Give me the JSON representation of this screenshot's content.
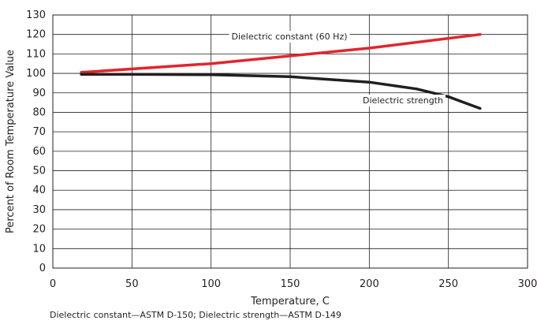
{
  "chart_data": {
    "type": "line",
    "title": "",
    "xlabel": "Temperature, C",
    "ylabel": "Percent of Room Temperature Value",
    "xlim": [
      0,
      300
    ],
    "ylim": [
      0,
      130
    ],
    "xticks": [
      "0",
      "50",
      "100",
      "150",
      "200",
      "250",
      "300"
    ],
    "yticks": [
      "0",
      "10",
      "20",
      "30",
      "40",
      "50",
      "60",
      "70",
      "80",
      "90",
      "100",
      "110",
      "120",
      "130"
    ],
    "grid": true,
    "legend": "inline labels",
    "series": [
      {
        "name": "Dielectric constant (60 Hz)",
        "color": "#e0262e",
        "x": [
          18,
          100,
          150,
          200,
          270
        ],
        "y": [
          100.5,
          105,
          109,
          113,
          120
        ]
      },
      {
        "name": "Dielectric strength",
        "color": "#231f20",
        "x": [
          18,
          50,
          100,
          150,
          200,
          230,
          250,
          260,
          270
        ],
        "y": [
          99.5,
          99.5,
          99.3,
          98.3,
          95.5,
          92,
          88,
          85,
          82
        ]
      }
    ],
    "footnote": "Dielectric constant—ASTM D-150; Dielectric strength—ASTM D-149"
  }
}
